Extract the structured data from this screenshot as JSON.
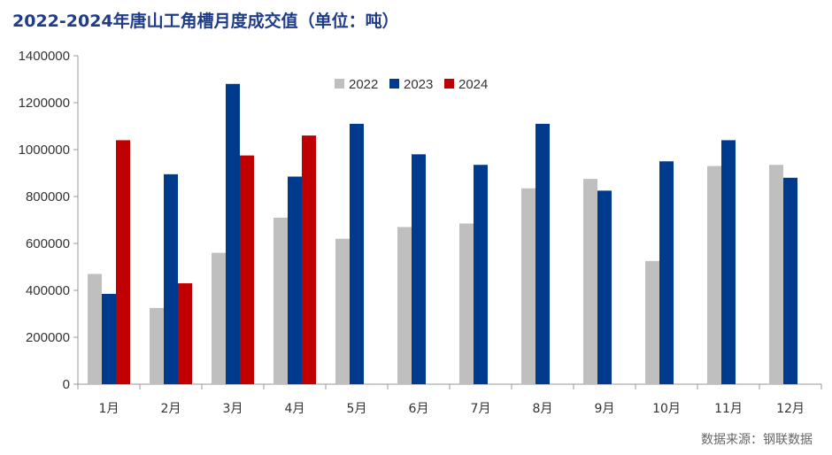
{
  "title": "2022-2024年唐山工角槽月度成交值（单位：吨）",
  "source": "数据来源：钢联数据",
  "chart_data": {
    "type": "bar",
    "title": "2022-2024年唐山工角槽月度成交值（单位：吨）",
    "categories": [
      "1月",
      "2月",
      "3月",
      "4月",
      "5月",
      "6月",
      "7月",
      "8月",
      "9月",
      "10月",
      "11月",
      "12月"
    ],
    "series": [
      {
        "name": "2022",
        "color": "#bfbfbf",
        "values": [
          470000,
          325000,
          560000,
          710000,
          620000,
          670000,
          685000,
          835000,
          875000,
          525000,
          930000,
          935000
        ]
      },
      {
        "name": "2023",
        "color": "#003a8c",
        "values": [
          385000,
          895000,
          1280000,
          885000,
          1110000,
          980000,
          935000,
          1110000,
          825000,
          950000,
          1040000,
          880000
        ]
      },
      {
        "name": "2024",
        "color": "#c00000",
        "values": [
          1040000,
          430000,
          975000,
          1060000,
          null,
          null,
          null,
          null,
          null,
          null,
          null,
          null
        ]
      }
    ],
    "yticks": [
      "0",
      "200000",
      "400000",
      "600000",
      "800000",
      "1000000",
      "1200000",
      "1400000"
    ],
    "ylim": [
      0,
      1400000
    ],
    "legend_position": "top-center",
    "grid": false
  }
}
